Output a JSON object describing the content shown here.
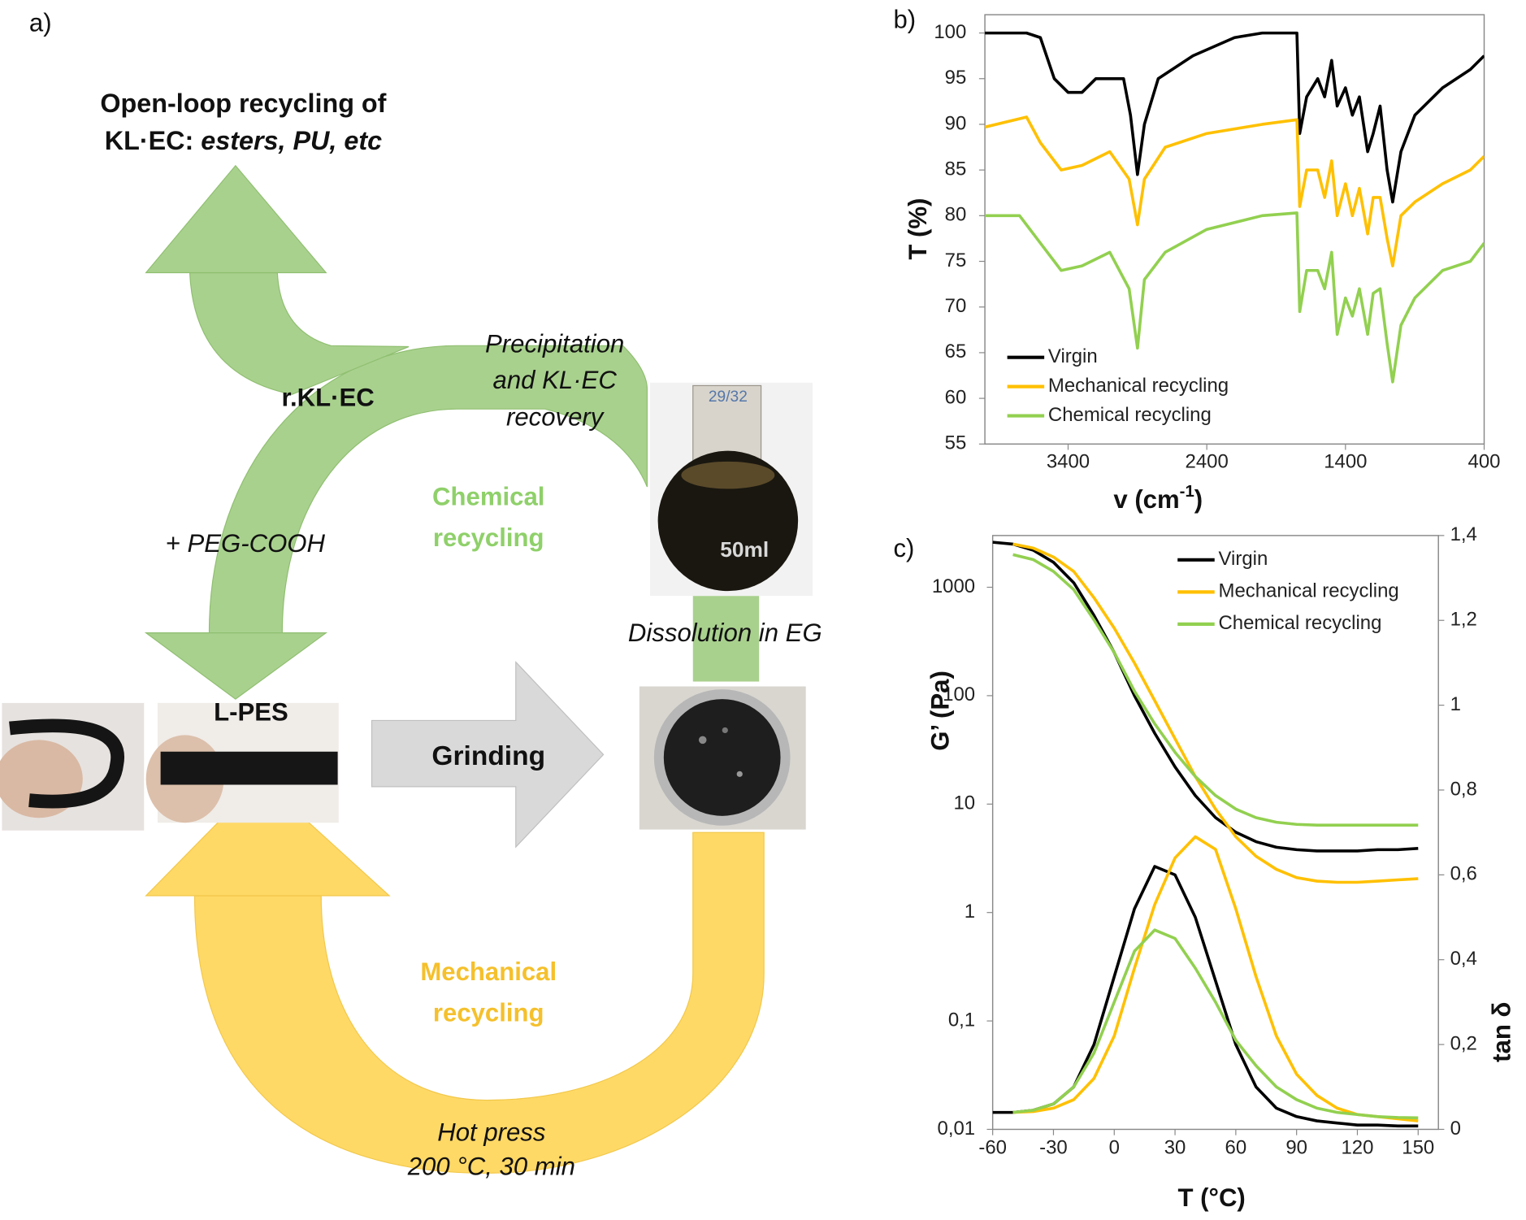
{
  "diagram": {
    "panel_label": "a)",
    "title": [
      "Open-loop recycling of",
      "KL·EC: ",
      "esters, PU, etc"
    ],
    "r_klec": "r.KL·EC",
    "peg": "+ PEG-COOH",
    "chemical": [
      "Chemical",
      "recycling"
    ],
    "precipitation": [
      "Precipitation",
      "and KL·EC",
      "recovery"
    ],
    "dissolution": "Dissolution in EG",
    "lpes": "L-PES",
    "grinding": "Grinding",
    "mechanical": [
      "Mechanical",
      "recycling"
    ],
    "hot_press": [
      "Hot press",
      "200 °C, 30 min"
    ],
    "flask_labels": [
      "29/32",
      "50ml"
    ]
  },
  "chart_data": [
    {
      "type": "line",
      "panel_label": "b)",
      "xlabel": [
        "v (cm",
        "-1",
        ")"
      ],
      "ylabel": "T (%)",
      "xlim": [
        4000,
        400
      ],
      "xticks": [
        3400,
        2400,
        1400,
        400
      ],
      "ylim": [
        55,
        102
      ],
      "yticks": [
        55,
        60,
        65,
        70,
        75,
        80,
        85,
        90,
        95,
        100
      ],
      "legend": "lower left",
      "series": [
        {
          "name": "Virgin",
          "color": "#000000",
          "x": [
            4000,
            3700,
            3600,
            3500,
            3400,
            3300,
            3200,
            3000,
            2950,
            2900,
            2850,
            2750,
            2500,
            2200,
            2000,
            1750,
            1730,
            1680,
            1600,
            1550,
            1500,
            1460,
            1400,
            1350,
            1300,
            1240,
            1200,
            1150,
            1100,
            1060,
            1000,
            900,
            700,
            500,
            400
          ],
          "values": [
            100,
            100,
            99.5,
            95,
            93.5,
            93.5,
            95,
            95,
            91,
            84.5,
            90,
            95,
            97.5,
            99.5,
            100,
            100,
            89,
            93,
            95,
            93,
            97,
            92,
            94,
            91,
            93,
            87,
            89,
            92,
            85,
            81.5,
            87,
            91,
            94,
            96,
            97.5
          ]
        },
        {
          "name": "Mechanical recycling",
          "color": "#ffc000",
          "x": [
            4000,
            3700,
            3600,
            3450,
            3300,
            3100,
            2960,
            2900,
            2850,
            2700,
            2400,
            2000,
            1750,
            1730,
            1680,
            1600,
            1550,
            1500,
            1460,
            1400,
            1350,
            1300,
            1240,
            1200,
            1150,
            1100,
            1060,
            1000,
            900,
            700,
            500,
            400
          ],
          "values": [
            89.7,
            90.8,
            88,
            85,
            85.5,
            87,
            84,
            79,
            84,
            87.5,
            89,
            90,
            90.5,
            81,
            85,
            85,
            82,
            86,
            80,
            83.5,
            80,
            83,
            78,
            82,
            82,
            77.5,
            74.5,
            80,
            81.5,
            83.5,
            85,
            86.5
          ]
        },
        {
          "name": "Chemical recycling",
          "color": "#92d050",
          "x": [
            4000,
            3750,
            3600,
            3450,
            3300,
            3100,
            2960,
            2900,
            2850,
            2700,
            2400,
            2000,
            1750,
            1730,
            1680,
            1600,
            1550,
            1500,
            1460,
            1400,
            1350,
            1300,
            1240,
            1200,
            1150,
            1100,
            1060,
            1000,
            900,
            700,
            500,
            400
          ],
          "values": [
            80,
            80,
            77,
            74,
            74.5,
            76,
            72,
            65.5,
            73,
            76,
            78.5,
            80,
            80.3,
            69.5,
            74,
            74,
            72,
            76,
            67,
            71,
            69,
            72,
            67,
            71.5,
            72,
            66,
            61.8,
            68,
            71,
            74,
            75,
            77
          ]
        }
      ]
    },
    {
      "type": "line",
      "panel_label": "c)",
      "xlabel": "T (°C)",
      "ylabel": "G’ (Pa)",
      "y2label": "tan δ",
      "xlim": [
        -60,
        160
      ],
      "xticks": [
        -60,
        -30,
        0,
        30,
        60,
        90,
        120,
        150
      ],
      "yscale": "log",
      "ylim": [
        0.01,
        3000
      ],
      "yticks": [
        {
          "value": 0.01,
          "label": "0,01"
        },
        {
          "value": 0.1,
          "label": "0,1"
        },
        1,
        10,
        100,
        1000
      ],
      "y2lim": [
        0,
        1.4
      ],
      "y2ticks": [
        0,
        {
          "value": 0.2,
          "label": "0,2"
        },
        {
          "value": 0.4,
          "label": "0,4"
        },
        {
          "value": 0.6,
          "label": "0,6"
        },
        {
          "value": 0.8,
          "label": "0,8"
        },
        1,
        {
          "value": 1.2,
          "label": "1,2"
        },
        {
          "value": 1.4,
          "label": "1,4"
        }
      ],
      "legend": "upper right",
      "series": [
        {
          "name": "Virgin",
          "color": "#000000",
          "x": [
            -60,
            -50,
            -40,
            -30,
            -20,
            -10,
            0,
            10,
            20,
            30,
            40,
            50,
            60,
            70,
            80,
            90,
            100,
            110,
            120,
            130,
            140,
            150
          ],
          "values": [
            2600,
            2500,
            2200,
            1700,
            1100,
            550,
            250,
            100,
            45,
            22,
            12,
            7.5,
            5.5,
            4.5,
            4,
            3.8,
            3.7,
            3.7,
            3.7,
            3.8,
            3.8,
            3.9
          ]
        },
        {
          "name": "Mechanical recycling",
          "color": "#ffc000",
          "x": [
            -60,
            -50,
            -40,
            -30,
            -20,
            -10,
            0,
            10,
            20,
            30,
            40,
            50,
            60,
            70,
            80,
            90,
            100,
            110,
            120,
            130,
            140,
            150
          ],
          "values": [
            null,
            2500,
            2300,
            1900,
            1400,
            800,
            420,
            200,
            90,
            40,
            18,
            9,
            5,
            3.3,
            2.5,
            2.1,
            1.95,
            1.9,
            1.9,
            1.95,
            2,
            2.05
          ]
        },
        {
          "name": "Chemical recycling",
          "color": "#92d050",
          "x": [
            -60,
            -50,
            -40,
            -30,
            -20,
            -10,
            0,
            10,
            20,
            30,
            40,
            50,
            60,
            70,
            80,
            90,
            100,
            110,
            120,
            130,
            140,
            150
          ],
          "values": [
            null,
            2000,
            1800,
            1400,
            950,
            500,
            250,
            110,
            55,
            30,
            18,
            12,
            9,
            7.5,
            6.8,
            6.5,
            6.4,
            6.4,
            6.4,
            6.4,
            6.4,
            6.4
          ]
        },
        {
          "color": "#000000",
          "axis": "y2",
          "x": [
            -60,
            -50,
            -40,
            -30,
            -20,
            -10,
            0,
            10,
            20,
            30,
            40,
            50,
            60,
            70,
            80,
            90,
            100,
            110,
            120,
            130,
            140,
            150
          ],
          "values": [
            0.04,
            0.04,
            0.045,
            0.06,
            0.1,
            0.2,
            0.36,
            0.52,
            0.62,
            0.6,
            0.5,
            0.35,
            0.2,
            0.1,
            0.05,
            0.03,
            0.02,
            0.015,
            0.01,
            0.01,
            0.008,
            0.008
          ]
        },
        {
          "color": "#ffc000",
          "axis": "y2",
          "x": [
            -60,
            -50,
            -40,
            -30,
            -20,
            -10,
            0,
            10,
            20,
            30,
            40,
            50,
            60,
            70,
            80,
            90,
            100,
            110,
            120,
            130,
            140,
            150
          ],
          "values": [
            null,
            0.04,
            0.042,
            0.05,
            0.07,
            0.12,
            0.22,
            0.38,
            0.53,
            0.64,
            0.69,
            0.66,
            0.52,
            0.36,
            0.22,
            0.13,
            0.08,
            0.05,
            0.035,
            0.03,
            0.025,
            0.02
          ]
        },
        {
          "color": "#92d050",
          "axis": "y2",
          "x": [
            -60,
            -50,
            -40,
            -30,
            -20,
            -10,
            0,
            10,
            20,
            30,
            40,
            50,
            60,
            70,
            80,
            90,
            100,
            110,
            120,
            130,
            140,
            150
          ],
          "values": [
            null,
            0.04,
            0.045,
            0.06,
            0.1,
            0.18,
            0.3,
            0.42,
            0.47,
            0.45,
            0.38,
            0.3,
            0.21,
            0.15,
            0.1,
            0.07,
            0.05,
            0.04,
            0.035,
            0.03,
            0.028,
            0.027
          ]
        }
      ]
    }
  ]
}
